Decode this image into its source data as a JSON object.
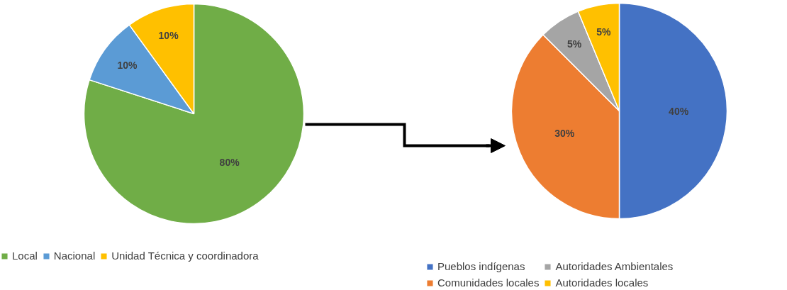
{
  "chart_data": [
    {
      "type": "pie",
      "categories": [
        "Local",
        "Nacional",
        "Unidad Técnica y coordinadora"
      ],
      "values": [
        80,
        10,
        10
      ],
      "colors": [
        "#70ad47",
        "#5b9bd5",
        "#ffc000"
      ],
      "value_labels": [
        "80%",
        "10%",
        "10%"
      ],
      "legend": "bottom"
    },
    {
      "type": "pie",
      "categories": [
        "Pueblos indígenas",
        "Comunidades locales",
        "Autoridades Ambientales",
        "Autoridades locales"
      ],
      "values": [
        40,
        30,
        5,
        5
      ],
      "colors": [
        "#4472c4",
        "#ed7d31",
        "#a5a5a5",
        "#ffc000"
      ],
      "value_labels": [
        "40%",
        "30%",
        "5%",
        "5%"
      ],
      "legend": "bottom"
    }
  ]
}
